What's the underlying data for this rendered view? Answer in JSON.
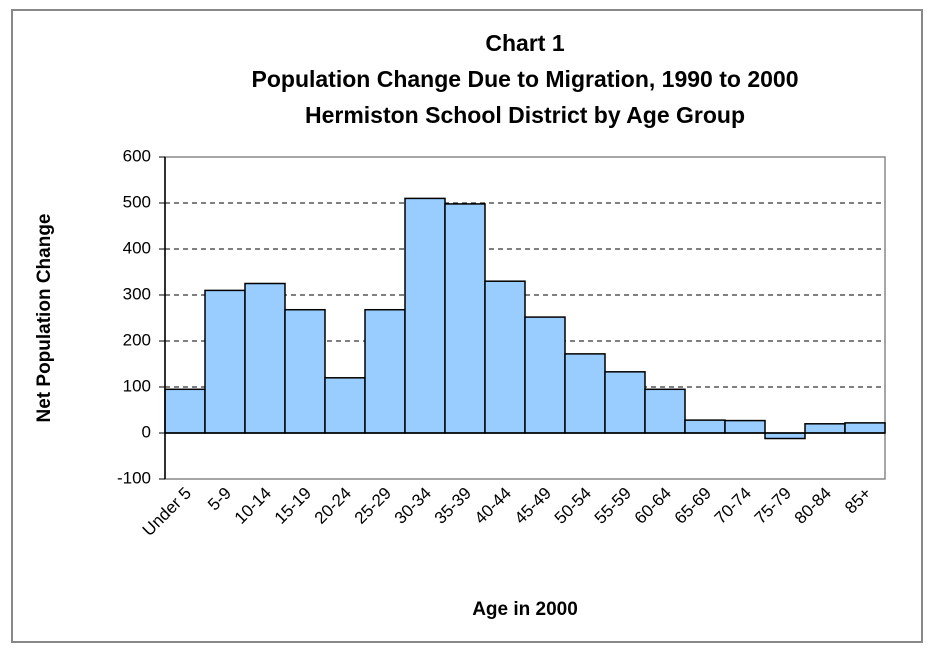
{
  "chart_data": {
    "type": "bar",
    "title": [
      "Chart 1",
      "Population Change Due to Migration, 1990 to 2000",
      "Hermiston School District by Age Group"
    ],
    "x_label": "Age in 2000",
    "y_label": "Net Population Change",
    "categories": [
      "Under 5",
      "5-9",
      "10-14",
      "15-19",
      "20-24",
      "25-29",
      "30-34",
      "35-39",
      "40-44",
      "45-49",
      "50-54",
      "55-59",
      "60-64",
      "65-69",
      "70-74",
      "75-79",
      "80-84",
      "85+"
    ],
    "values": [
      95,
      310,
      325,
      268,
      120,
      268,
      510,
      498,
      330,
      252,
      172,
      133,
      95,
      28,
      27,
      -12,
      20,
      22
    ],
    "color": "#99ccff",
    "ylim": [
      -100,
      600
    ],
    "yticks": [
      -100,
      0,
      100,
      200,
      300,
      400,
      500,
      600
    ],
    "grid": true
  }
}
